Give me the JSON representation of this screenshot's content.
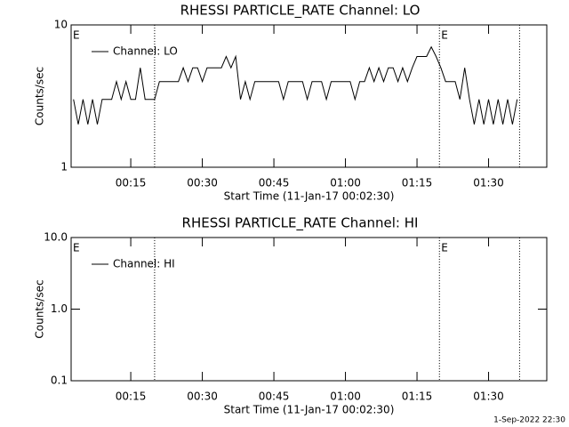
{
  "chart_data": [
    {
      "type": "line",
      "title": "RHESSI PARTICLE_RATE Channel: LO",
      "xlabel": "Start Time (11-Jan-17 00:02:30)",
      "ylabel": "Counts/sec",
      "log_y": true,
      "xlim": [
        2.5,
        102.2
      ],
      "ylim": [
        1,
        10
      ],
      "xticks": [
        {
          "value": 15,
          "label": "00:15"
        },
        {
          "value": 30,
          "label": "00:30"
        },
        {
          "value": 45,
          "label": "00:45"
        },
        {
          "value": 60,
          "label": "01:00"
        },
        {
          "value": 75,
          "label": "01:15"
        },
        {
          "value": 90,
          "label": "01:30"
        }
      ],
      "yticks": [
        1,
        10
      ],
      "legend": "upper left",
      "vlines": [
        20,
        79.7,
        96.5
      ],
      "annotations": [
        {
          "text": "E",
          "x": 2.5
        },
        {
          "text": "E",
          "x": 79.7
        }
      ],
      "x": [
        3,
        4,
        5,
        6,
        7,
        8,
        9,
        10,
        11,
        12,
        13,
        14,
        15,
        16,
        17,
        18,
        19,
        20,
        21,
        22,
        23,
        24,
        25,
        26,
        27,
        28,
        29,
        30,
        31,
        32,
        33,
        34,
        35,
        36,
        37,
        38,
        39,
        40,
        41,
        42,
        43,
        44,
        45,
        46,
        47,
        48,
        49,
        50,
        51,
        52,
        53,
        54,
        55,
        56,
        57,
        58,
        59,
        60,
        61,
        62,
        63,
        64,
        65,
        66,
        67,
        68,
        69,
        70,
        71,
        72,
        73,
        74,
        75,
        76,
        77,
        78,
        79,
        80,
        81,
        82,
        83,
        84,
        85,
        86,
        87,
        88,
        89,
        90,
        91,
        92,
        93,
        94,
        95,
        96
      ],
      "series": [
        {
          "name": "Channel: LO",
          "color": "#000000",
          "values": [
            3,
            2,
            3,
            2,
            3,
            2,
            3,
            3,
            3,
            4,
            3,
            4,
            3,
            3,
            5,
            3,
            3,
            3,
            4,
            4,
            4,
            4,
            4,
            5,
            4,
            5,
            5,
            4,
            5,
            5,
            5,
            5,
            6,
            5,
            6,
            3,
            4,
            3,
            4,
            4,
            4,
            4,
            4,
            4,
            3,
            4,
            4,
            4,
            4,
            3,
            4,
            4,
            4,
            3,
            4,
            4,
            4,
            4,
            4,
            3,
            4,
            4,
            5,
            4,
            5,
            4,
            5,
            5,
            4,
            5,
            4,
            5,
            6,
            6,
            6,
            7,
            6,
            5,
            4,
            4,
            4,
            3,
            5,
            3,
            2,
            3,
            2,
            3,
            2,
            3,
            2,
            3,
            2,
            3
          ]
        }
      ]
    },
    {
      "type": "line",
      "title": "RHESSI PARTICLE_RATE Channel: HI",
      "xlabel": "Start Time (11-Jan-17 00:02:30)",
      "ylabel": "Counts/sec",
      "log_y": true,
      "xlim": [
        2.5,
        102.2
      ],
      "ylim": [
        0.1,
        10
      ],
      "xticks": [
        {
          "value": 15,
          "label": "00:15"
        },
        {
          "value": 30,
          "label": "00:30"
        },
        {
          "value": 45,
          "label": "00:45"
        },
        {
          "value": 60,
          "label": "01:00"
        },
        {
          "value": 75,
          "label": "01:15"
        },
        {
          "value": 90,
          "label": "01:30"
        }
      ],
      "yticks": [
        0.1,
        {
          "value": 1,
          "label": "1.0"
        },
        {
          "value": 10,
          "label": "10.0"
        }
      ],
      "legend": "upper left",
      "vlines": [
        20,
        79.7,
        96.5
      ],
      "annotations": [
        {
          "text": "E",
          "x": 2.5
        },
        {
          "text": "E",
          "x": 79.7
        }
      ],
      "x": [],
      "series": [
        {
          "name": "Channel: HI",
          "color": "#000000",
          "values": []
        }
      ]
    }
  ],
  "footer": "1-Sep-2022 22:30"
}
